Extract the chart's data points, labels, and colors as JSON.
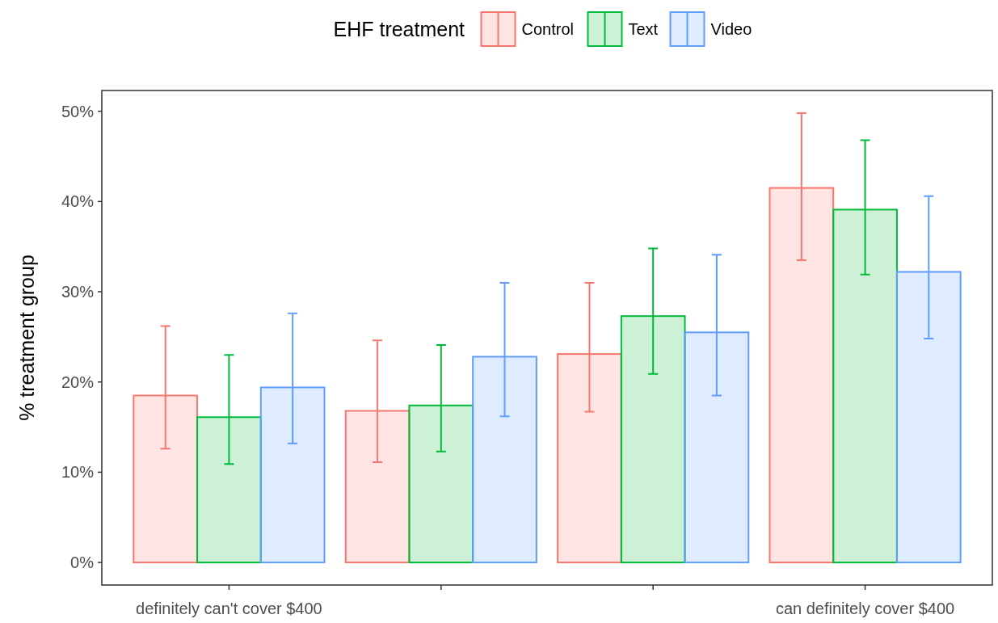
{
  "chart_data": {
    "type": "bar",
    "legend_title": "EHF treatment",
    "ylabel": "% treatment group",
    "categories": [
      "definitely can't cover $400",
      null,
      null,
      "can definitely cover $400"
    ],
    "series": [
      {
        "name": "Control",
        "color": "#f8766d",
        "values": [
          18.5,
          16.8,
          23.1,
          41.5
        ],
        "errors": [
          [
            12.6,
            26.2
          ],
          [
            11.1,
            24.6
          ],
          [
            16.7,
            31.0
          ],
          [
            33.5,
            49.8
          ]
        ]
      },
      {
        "name": "Text",
        "color": "#00ba38",
        "values": [
          16.1,
          17.4,
          27.3,
          39.1
        ],
        "errors": [
          [
            10.9,
            23.0
          ],
          [
            12.3,
            24.1
          ],
          [
            20.9,
            34.8
          ],
          [
            31.9,
            46.8
          ]
        ]
      },
      {
        "name": "Video",
        "color": "#619cff",
        "values": [
          19.4,
          22.8,
          25.5,
          32.2
        ],
        "errors": [
          [
            13.2,
            27.6
          ],
          [
            16.2,
            31.0
          ],
          [
            18.5,
            34.1
          ],
          [
            24.8,
            40.6
          ]
        ]
      }
    ],
    "ylim": [
      -2.5,
      52.3
    ],
    "yticks": [
      {
        "value": 0,
        "label": "0%"
      },
      {
        "value": 10,
        "label": "10%"
      },
      {
        "value": 20,
        "label": "20%"
      },
      {
        "value": 30,
        "label": "30%"
      },
      {
        "value": 40,
        "label": "40%"
      },
      {
        "value": 50,
        "label": "50%"
      }
    ],
    "legend": "top",
    "grid": false
  }
}
